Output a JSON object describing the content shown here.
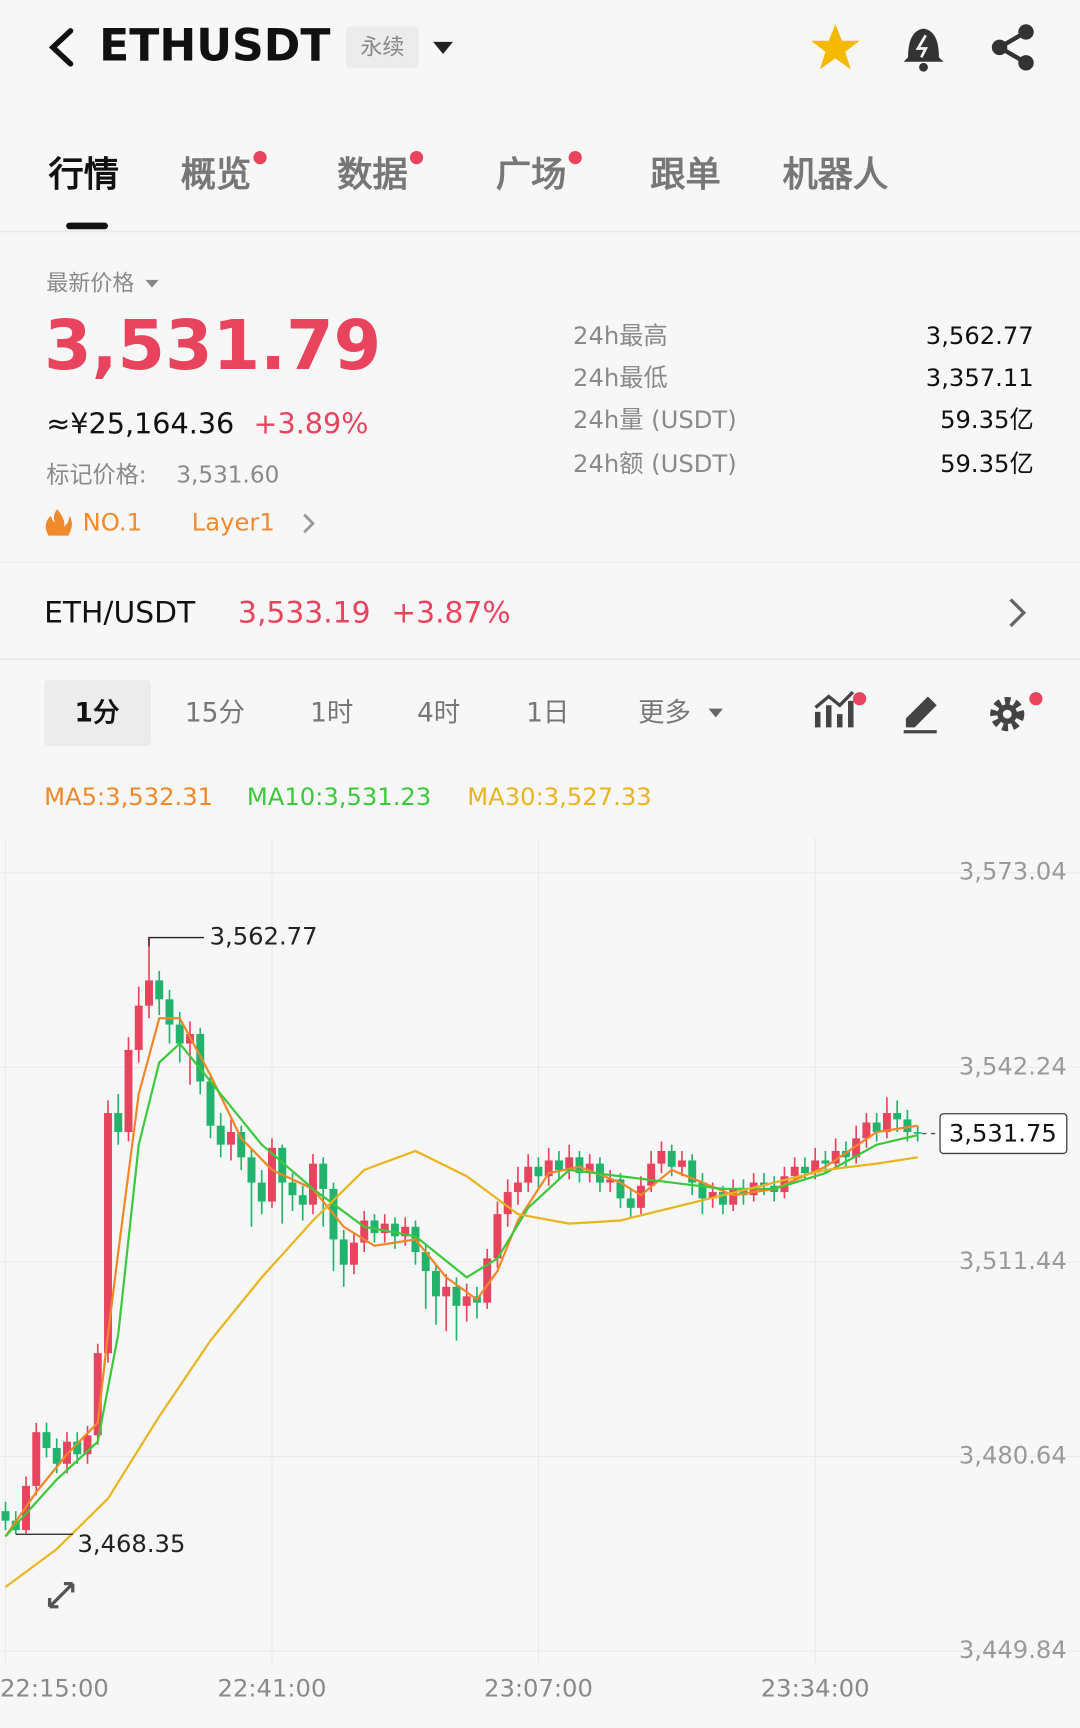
{
  "header": {
    "symbol": "ETHUSDT",
    "badge": "永续"
  },
  "tabs": [
    {
      "label": "行情",
      "dot": false
    },
    {
      "label": "概览",
      "dot": true
    },
    {
      "label": "数据",
      "dot": true
    },
    {
      "label": "广场",
      "dot": true
    },
    {
      "label": "跟单",
      "dot": false
    },
    {
      "label": "机器人",
      "dot": false
    }
  ],
  "active_tab": 0,
  "price": {
    "label": "最新价格",
    "last": "3,531.79",
    "cny": "≈¥25,164.36",
    "change": "+3.89%",
    "mark_label": "标记价格:",
    "mark": "3,531.60",
    "rank": "NO.1",
    "sector": "Layer1"
  },
  "stats": [
    {
      "label": "24h最高",
      "value": "3,562.77"
    },
    {
      "label": "24h最低",
      "value": "3,357.11"
    },
    {
      "label": "24h量 (USDT)",
      "value": "59.35亿"
    },
    {
      "label": "24h额 (USDT)",
      "value": "59.35亿"
    }
  ],
  "pair": {
    "name": "ETH/USDT",
    "price": "3,533.19",
    "change": "+3.87%"
  },
  "timeframes": [
    "1分",
    "15分",
    "1时",
    "4时",
    "1日",
    "更多"
  ],
  "active_timeframe": 0,
  "chart_data": {
    "type": "candlestick",
    "up_color": "#e8445e",
    "down_color": "#22b36c",
    "x": [
      "22:15:00",
      "22:16:00",
      "22:17:00",
      "22:18:00",
      "22:19:00",
      "22:20:00",
      "22:21:00",
      "22:22:00",
      "22:23:00",
      "22:24:00",
      "22:25:00",
      "22:26:00",
      "22:27:00",
      "22:28:00",
      "22:29:00",
      "22:30:00",
      "22:31:00",
      "22:32:00",
      "22:33:00",
      "22:34:00",
      "22:35:00",
      "22:36:00",
      "22:37:00",
      "22:38:00",
      "22:39:00",
      "22:40:00",
      "22:41:00",
      "22:42:00",
      "22:43:00",
      "22:44:00",
      "22:45:00",
      "22:46:00",
      "22:47:00",
      "22:48:00",
      "22:49:00",
      "22:50:00",
      "22:51:00",
      "22:52:00",
      "22:53:00",
      "22:54:00",
      "22:55:00",
      "22:56:00",
      "22:57:00",
      "22:58:00",
      "22:59:00",
      "23:00:00",
      "23:01:00",
      "23:02:00",
      "23:03:00",
      "23:04:00",
      "23:05:00",
      "23:06:00",
      "23:07:00",
      "23:08:00",
      "23:09:00",
      "23:10:00",
      "23:11:00",
      "23:12:00",
      "23:13:00",
      "23:14:00",
      "23:15:00",
      "23:16:00",
      "23:17:00",
      "23:18:00",
      "23:19:00",
      "23:20:00",
      "23:21:00",
      "23:22:00",
      "23:23:00",
      "23:24:00",
      "23:25:00",
      "23:26:00",
      "23:27:00",
      "23:28:00",
      "23:29:00",
      "23:30:00",
      "23:31:00",
      "23:32:00",
      "23:33:00",
      "23:34:00",
      "23:35:00",
      "23:36:00",
      "23:37:00",
      "23:38:00",
      "23:39:00",
      "23:40:00",
      "23:41:00",
      "23:42:00",
      "23:43:00",
      "23:44:00"
    ],
    "ohlc": [
      [
        3472.0,
        3473.5,
        3469.0,
        3470.5
      ],
      [
        3470.5,
        3472.0,
        3468.35,
        3469.0
      ],
      [
        3469.0,
        3477.5,
        3468.5,
        3476.0
      ],
      [
        3476.0,
        3486.0,
        3474.5,
        3484.5
      ],
      [
        3484.5,
        3486.0,
        3480.5,
        3482.0
      ],
      [
        3482.0,
        3483.5,
        3478.0,
        3479.5
      ],
      [
        3479.5,
        3484.5,
        3478.0,
        3483.0
      ],
      [
        3483.0,
        3484.5,
        3479.5,
        3481.0
      ],
      [
        3481.0,
        3485.5,
        3479.5,
        3484.0
      ],
      [
        3484.0,
        3498.5,
        3482.5,
        3497.0
      ],
      [
        3497.0,
        3537.0,
        3495.5,
        3535.0
      ],
      [
        3535.0,
        3538.0,
        3530.0,
        3532.0
      ],
      [
        3532.0,
        3547.0,
        3530.5,
        3545.0
      ],
      [
        3545.0,
        3555.0,
        3543.0,
        3552.0
      ],
      [
        3552.0,
        3562.77,
        3550.0,
        3556.0
      ],
      [
        3556.0,
        3557.5,
        3550.5,
        3553.0
      ],
      [
        3553.0,
        3554.5,
        3546.0,
        3549.0
      ],
      [
        3549.0,
        3551.0,
        3543.0,
        3546.0
      ],
      [
        3546.0,
        3549.5,
        3539.5,
        3547.5
      ],
      [
        3547.5,
        3548.5,
        3538.0,
        3540.0
      ],
      [
        3540.0,
        3541.0,
        3531.0,
        3533.0
      ],
      [
        3533.0,
        3535.0,
        3528.0,
        3530.0
      ],
      [
        3530.0,
        3534.0,
        3527.5,
        3532.0
      ],
      [
        3532.0,
        3533.0,
        3526.0,
        3528.0
      ],
      [
        3528.0,
        3529.5,
        3517.0,
        3524.0
      ],
      [
        3524.0,
        3526.0,
        3519.0,
        3521.0
      ],
      [
        3521.0,
        3531.0,
        3520.0,
        3529.5
      ],
      [
        3529.5,
        3530.0,
        3517.5,
        3524.0
      ],
      [
        3524.0,
        3525.5,
        3519.5,
        3522.0
      ],
      [
        3522.0,
        3523.5,
        3518.0,
        3520.5
      ],
      [
        3520.5,
        3528.5,
        3519.0,
        3527.0
      ],
      [
        3527.0,
        3528.0,
        3517.0,
        3523.0
      ],
      [
        3523.0,
        3524.0,
        3510.0,
        3515.0
      ],
      [
        3515.0,
        3516.5,
        3507.5,
        3511.0
      ],
      [
        3511.0,
        3516.0,
        3509.5,
        3514.5
      ],
      [
        3514.5,
        3519.5,
        3513.0,
        3518.0
      ],
      [
        3518.0,
        3519.0,
        3514.5,
        3516.0
      ],
      [
        3516.0,
        3519.0,
        3514.5,
        3517.5
      ],
      [
        3517.5,
        3518.5,
        3513.5,
        3515.5
      ],
      [
        3515.5,
        3518.5,
        3514.0,
        3517.0
      ],
      [
        3517.0,
        3518.0,
        3511.0,
        3513.0
      ],
      [
        3513.0,
        3514.0,
        3504.0,
        3510.0
      ],
      [
        3510.0,
        3511.0,
        3501.5,
        3506.0
      ],
      [
        3506.0,
        3509.5,
        3500.5,
        3507.5
      ],
      [
        3507.5,
        3509.0,
        3499.0,
        3504.5
      ],
      [
        3504.5,
        3508.0,
        3502.0,
        3506.0
      ],
      [
        3506.0,
        3507.5,
        3502.5,
        3505.0
      ],
      [
        3505.0,
        3513.5,
        3504.0,
        3512.0
      ],
      [
        3512.0,
        3521.0,
        3510.5,
        3519.0
      ],
      [
        3519.0,
        3524.5,
        3517.0,
        3522.5
      ],
      [
        3522.5,
        3526.5,
        3520.5,
        3524.0
      ],
      [
        3524.0,
        3528.5,
        3522.5,
        3526.5
      ],
      [
        3526.5,
        3528.0,
        3523.0,
        3525.0
      ],
      [
        3525.0,
        3529.5,
        3523.5,
        3527.5
      ],
      [
        3527.5,
        3529.0,
        3524.5,
        3526.0
      ],
      [
        3526.0,
        3530.0,
        3524.5,
        3528.0
      ],
      [
        3528.0,
        3529.0,
        3524.0,
        3525.5
      ],
      [
        3525.5,
        3528.5,
        3524.0,
        3527.0
      ],
      [
        3527.0,
        3528.0,
        3522.5,
        3524.0
      ],
      [
        3524.0,
        3526.0,
        3522.5,
        3524.5
      ],
      [
        3524.5,
        3525.5,
        3520.0,
        3521.5
      ],
      [
        3521.5,
        3523.0,
        3518.5,
        3520.0
      ],
      [
        3520.0,
        3525.0,
        3519.0,
        3523.5
      ],
      [
        3523.5,
        3529.0,
        3522.5,
        3527.0
      ],
      [
        3527.0,
        3530.5,
        3525.5,
        3529.0
      ],
      [
        3529.0,
        3530.0,
        3525.0,
        3526.5
      ],
      [
        3526.5,
        3529.0,
        3525.0,
        3527.5
      ],
      [
        3527.5,
        3528.5,
        3522.0,
        3524.0
      ],
      [
        3524.0,
        3525.5,
        3519.0,
        3521.5
      ],
      [
        3521.5,
        3524.0,
        3520.0,
        3522.5
      ],
      [
        3522.5,
        3523.5,
        3519.0,
        3520.5
      ],
      [
        3520.5,
        3524.5,
        3519.5,
        3523.0
      ],
      [
        3523.0,
        3524.5,
        3520.5,
        3522.0
      ],
      [
        3522.0,
        3525.5,
        3521.0,
        3524.0
      ],
      [
        3524.0,
        3525.5,
        3522.0,
        3523.5
      ],
      [
        3523.5,
        3525.0,
        3521.0,
        3522.5
      ],
      [
        3522.5,
        3526.5,
        3521.5,
        3525.0
      ],
      [
        3525.0,
        3528.0,
        3524.0,
        3526.5
      ],
      [
        3526.5,
        3528.0,
        3524.5,
        3525.5
      ],
      [
        3525.5,
        3529.5,
        3524.5,
        3527.5
      ],
      [
        3527.5,
        3529.0,
        3525.5,
        3527.0
      ],
      [
        3527.0,
        3531.0,
        3526.0,
        3529.0
      ],
      [
        3529.0,
        3530.5,
        3526.5,
        3528.0
      ],
      [
        3528.0,
        3533.0,
        3527.0,
        3531.0
      ],
      [
        3531.0,
        3535.0,
        3529.5,
        3533.5
      ],
      [
        3533.5,
        3535.0,
        3530.5,
        3532.0
      ],
      [
        3532.0,
        3537.5,
        3531.0,
        3535.0
      ],
      [
        3535.0,
        3537.0,
        3532.0,
        3534.0
      ],
      [
        3534.0,
        3535.5,
        3530.5,
        3532.0
      ],
      [
        3532.0,
        3533.0,
        3530.5,
        3531.75
      ]
    ],
    "series": [
      {
        "name": "MA5:3,532.31",
        "color": "#f0882a",
        "x": [
          "22:15:00",
          "22:18:00",
          "22:21:00",
          "22:24:00",
          "22:25:00",
          "22:26:00",
          "22:28:00",
          "22:30:00",
          "22:32:00",
          "22:35:00",
          "22:38:00",
          "22:41:00",
          "22:45:00",
          "22:48:00",
          "22:51:00",
          "22:55:00",
          "22:58:00",
          "23:01:00",
          "23:03:00",
          "23:05:00",
          "23:08:00",
          "23:11:00",
          "23:15:00",
          "23:17:00",
          "23:20:00",
          "23:23:00",
          "23:26:00",
          "23:30:00",
          "23:35:00",
          "23:40:00",
          "23:44:00"
        ],
        "values": [
          3468,
          3475,
          3481,
          3486,
          3500,
          3513,
          3538,
          3550,
          3550,
          3541,
          3531,
          3526,
          3523,
          3517,
          3514,
          3515,
          3509,
          3505.5,
          3510,
          3518,
          3525.5,
          3526.5,
          3524,
          3522,
          3526,
          3524,
          3522,
          3523,
          3526.5,
          3532,
          3533
        ]
      },
      {
        "name": "MA10:3,531.23",
        "color": "#3cc83c",
        "x": [
          "22:15:00",
          "22:20:00",
          "22:24:00",
          "22:26:00",
          "22:28:00",
          "22:30:00",
          "22:32:00",
          "22:35:00",
          "22:40:00",
          "22:45:00",
          "22:50:00",
          "22:55:00",
          "23:00:00",
          "23:03:00",
          "23:06:00",
          "23:10:00",
          "23:15:00",
          "23:20:00",
          "23:25:00",
          "23:30:00",
          "23:35:00",
          "23:40:00",
          "23:44:00"
        ],
        "values": [
          3468,
          3477,
          3483,
          3500,
          3530,
          3543,
          3546,
          3540,
          3530,
          3523,
          3517,
          3515.5,
          3509,
          3512,
          3520,
          3526,
          3525,
          3524,
          3523,
          3523,
          3525.5,
          3530,
          3531.5
        ]
      },
      {
        "name": "MA30:3,527.33",
        "color": "#e9b420",
        "x": [
          "22:15:00",
          "22:20:00",
          "22:25:00",
          "22:30:00",
          "22:35:00",
          "22:40:00",
          "22:45:00",
          "22:50:00",
          "22:55:00",
          "23:00:00",
          "23:05:00",
          "23:10:00",
          "23:15:00",
          "23:20:00",
          "23:25:00",
          "23:30:00",
          "23:35:00",
          "23:40:00",
          "23:44:00"
        ],
        "values": [
          3460,
          3466,
          3474,
          3487,
          3499,
          3509,
          3518,
          3526,
          3529,
          3525,
          3519,
          3517.5,
          3518,
          3520,
          3522,
          3524,
          3526,
          3527,
          3528
        ]
      }
    ],
    "ylim": [
      3447.8,
      3578.6
    ],
    "yticks": [
      {
        "value": 3573.04,
        "label": "3,573.04"
      },
      {
        "value": 3542.24,
        "label": "3,542.24"
      },
      {
        "value": 3511.44,
        "label": "3,511.44"
      },
      {
        "value": 3480.64,
        "label": "3,480.64"
      },
      {
        "value": 3449.84,
        "label": "3,449.84"
      }
    ],
    "xticks": [
      "22:15:00",
      "22:41:00",
      "23:07:00",
      "23:34:00"
    ],
    "grid": true,
    "max_label": "3,562.77",
    "min_label": "3,468.35",
    "last_label": "3,531.75"
  }
}
